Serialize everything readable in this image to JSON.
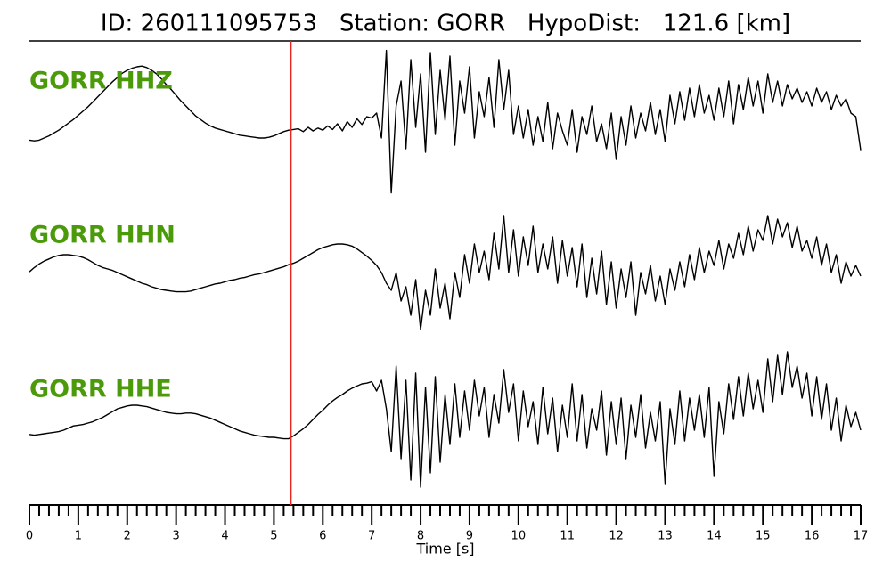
{
  "chart_data": {
    "type": "line",
    "title": "ID: 260111095753   Station: GORR   HypoDist:   121.6 [km]",
    "x_label": "Time [s]",
    "xlim": [
      0,
      17
    ],
    "ylim": [
      -1,
      1
    ],
    "xticks": [
      0,
      1,
      2,
      3,
      4,
      5,
      6,
      7,
      8,
      9,
      10,
      11,
      12,
      13,
      14,
      15,
      16,
      17
    ],
    "xminorticks": [
      0.2,
      0.4,
      0.6,
      0.8,
      1.2,
      1.4,
      1.6,
      1.8,
      2.2,
      2.4,
      2.6,
      2.8,
      3.2,
      3.4,
      3.6,
      3.8,
      4.2,
      4.4,
      4.6,
      4.8,
      5.2,
      5.4,
      5.6,
      5.8,
      6.2,
      6.4,
      6.6,
      6.8,
      7.2,
      7.4,
      7.6,
      7.8,
      8.2,
      8.4,
      8.6,
      8.8,
      9.2,
      9.4,
      9.6,
      9.8,
      10.2,
      10.4,
      10.6,
      10.8,
      11.2,
      11.4,
      11.6,
      11.8,
      12.2,
      12.4,
      12.6,
      12.8,
      13.2,
      13.4,
      13.6,
      13.8,
      14.2,
      14.4,
      14.6,
      14.8,
      15.2,
      15.4,
      15.6,
      15.8,
      16.2,
      16.4,
      16.6,
      16.8
    ],
    "pick_time": 5.35,
    "pick_color": "#e8261f",
    "label_color": "#4a9a0a",
    "x": [
      0,
      0.1,
      0.2,
      0.3,
      0.4,
      0.5,
      0.6,
      0.7,
      0.8,
      0.9,
      1,
      1.1,
      1.2,
      1.3,
      1.4,
      1.5,
      1.6,
      1.7,
      1.8,
      1.9,
      2,
      2.1,
      2.2,
      2.3,
      2.4,
      2.5,
      2.6,
      2.7,
      2.8,
      2.9,
      3,
      3.1,
      3.2,
      3.3,
      3.4,
      3.5,
      3.6,
      3.7,
      3.8,
      3.9,
      4,
      4.1,
      4.2,
      4.3,
      4.4,
      4.5,
      4.6,
      4.7,
      4.8,
      4.9,
      5,
      5.1,
      5.2,
      5.3,
      5.4,
      5.5,
      5.6,
      5.7,
      5.8,
      5.9,
      6,
      6.1,
      6.2,
      6.3,
      6.4,
      6.5,
      6.6,
      6.7,
      6.8,
      6.9,
      7,
      7.1,
      7.2,
      7.3,
      7.4,
      7.5,
      7.6,
      7.7,
      7.8,
      7.9,
      8,
      8.1,
      8.2,
      8.3,
      8.4,
      8.5,
      8.6,
      8.7,
      8.8,
      8.9,
      9,
      9.1,
      9.2,
      9.3,
      9.4,
      9.5,
      9.6,
      9.7,
      9.8,
      9.9,
      10,
      10.1,
      10.2,
      10.3,
      10.4,
      10.5,
      10.6,
      10.7,
      10.8,
      10.9,
      11,
      11.1,
      11.2,
      11.3,
      11.4,
      11.5,
      11.6,
      11.7,
      11.8,
      11.9,
      12,
      12.1,
      12.2,
      12.3,
      12.4,
      12.5,
      12.6,
      12.7,
      12.8,
      12.9,
      13,
      13.1,
      13.2,
      13.3,
      13.4,
      13.5,
      13.6,
      13.7,
      13.8,
      13.9,
      14,
      14.1,
      14.2,
      14.3,
      14.4,
      14.5,
      14.6,
      14.7,
      14.8,
      14.9,
      15,
      15.1,
      15.2,
      15.3,
      15.4,
      15.5,
      15.6,
      15.7,
      15.8,
      15.9,
      16,
      16.1,
      16.2,
      16.3,
      16.4,
      16.5,
      16.6,
      16.7,
      16.8,
      16.9,
      17
    ],
    "series": [
      {
        "name": "GORR HHZ",
        "color": "#000000",
        "values": [
          -0.28,
          -0.29,
          -0.28,
          -0.25,
          -0.22,
          -0.18,
          -0.14,
          -0.09,
          -0.04,
          0.01,
          0.07,
          0.13,
          0.19,
          0.26,
          0.33,
          0.4,
          0.47,
          0.54,
          0.6,
          0.66,
          0.7,
          0.73,
          0.75,
          0.76,
          0.74,
          0.7,
          0.65,
          0.58,
          0.5,
          0.43,
          0.35,
          0.27,
          0.2,
          0.13,
          0.06,
          0.01,
          -0.04,
          -0.08,
          -0.11,
          -0.13,
          -0.15,
          -0.17,
          -0.19,
          -0.21,
          -0.22,
          -0.23,
          -0.24,
          -0.25,
          -0.25,
          -0.24,
          -0.22,
          -0.19,
          -0.16,
          -0.14,
          -0.13,
          -0.12,
          -0.16,
          -0.1,
          -0.15,
          -0.11,
          -0.14,
          -0.08,
          -0.13,
          -0.05,
          -0.15,
          -0.02,
          -0.1,
          0.02,
          -0.06,
          0.05,
          0.03,
          0.1,
          -0.25,
          0.98,
          -1.02,
          0.2,
          0.55,
          -0.4,
          0.85,
          -0.1,
          0.65,
          -0.45,
          0.95,
          -0.2,
          0.7,
          0.0,
          0.9,
          -0.35,
          0.55,
          0.1,
          0.75,
          -0.25,
          0.4,
          0.05,
          0.6,
          -0.1,
          0.85,
          0.15,
          0.7,
          -0.2,
          0.2,
          -0.25,
          0.15,
          -0.35,
          0.05,
          -0.3,
          0.25,
          -0.4,
          0.1,
          -0.15,
          -0.35,
          0.15,
          -0.45,
          0.05,
          -0.2,
          0.2,
          -0.3,
          -0.05,
          -0.4,
          0.1,
          -0.55,
          0.05,
          -0.35,
          0.2,
          -0.25,
          0.1,
          -0.15,
          0.25,
          -0.2,
          0.15,
          -0.3,
          0.35,
          -0.05,
          0.4,
          0.0,
          0.45,
          0.05,
          0.5,
          0.1,
          0.35,
          0.0,
          0.45,
          0.05,
          0.55,
          -0.05,
          0.5,
          0.15,
          0.6,
          0.2,
          0.55,
          0.1,
          0.65,
          0.25,
          0.55,
          0.2,
          0.5,
          0.3,
          0.45,
          0.25,
          0.4,
          0.2,
          0.45,
          0.25,
          0.4,
          0.15,
          0.35,
          0.2,
          0.3,
          0.1,
          0.05,
          -0.42
        ]
      },
      {
        "name": "GORR HHN",
        "color": "#000000",
        "values": [
          0.06,
          0.12,
          0.17,
          0.21,
          0.24,
          0.27,
          0.29,
          0.3,
          0.3,
          0.29,
          0.28,
          0.26,
          0.23,
          0.19,
          0.15,
          0.12,
          0.1,
          0.08,
          0.05,
          0.02,
          -0.01,
          -0.04,
          -0.07,
          -0.1,
          -0.12,
          -0.15,
          -0.17,
          -0.19,
          -0.2,
          -0.21,
          -0.22,
          -0.22,
          -0.22,
          -0.21,
          -0.19,
          -0.17,
          -0.15,
          -0.13,
          -0.11,
          -0.1,
          -0.08,
          -0.06,
          -0.05,
          -0.03,
          -0.02,
          0.0,
          0.02,
          0.03,
          0.05,
          0.07,
          0.09,
          0.11,
          0.13,
          0.16,
          0.18,
          0.21,
          0.25,
          0.29,
          0.33,
          0.37,
          0.4,
          0.42,
          0.44,
          0.45,
          0.45,
          0.44,
          0.42,
          0.38,
          0.33,
          0.28,
          0.22,
          0.15,
          0.05,
          -0.1,
          -0.2,
          0.05,
          -0.35,
          -0.15,
          -0.55,
          -0.05,
          -0.75,
          -0.2,
          -0.55,
          0.1,
          -0.45,
          -0.1,
          -0.6,
          0.05,
          -0.3,
          0.3,
          -0.1,
          0.45,
          0.05,
          0.35,
          -0.05,
          0.6,
          0.1,
          0.85,
          0.05,
          0.65,
          0.0,
          0.55,
          0.15,
          0.7,
          0.05,
          0.45,
          0.1,
          0.55,
          -0.1,
          0.5,
          0.0,
          0.4,
          -0.15,
          0.45,
          -0.3,
          0.25,
          -0.25,
          0.35,
          -0.4,
          0.2,
          -0.45,
          0.1,
          -0.3,
          0.2,
          -0.55,
          0.05,
          -0.25,
          0.15,
          -0.35,
          0.0,
          -0.4,
          0.1,
          -0.2,
          0.2,
          -0.15,
          0.3,
          -0.05,
          0.4,
          0.05,
          0.35,
          0.15,
          0.5,
          0.1,
          0.45,
          0.25,
          0.6,
          0.3,
          0.7,
          0.35,
          0.65,
          0.5,
          0.85,
          0.45,
          0.8,
          0.55,
          0.75,
          0.4,
          0.7,
          0.35,
          0.5,
          0.25,
          0.55,
          0.15,
          0.45,
          0.05,
          0.3,
          -0.1,
          0.2,
          0.0,
          0.15,
          0.0
        ]
      },
      {
        "name": "GORR HHE",
        "color": "#000000",
        "values": [
          -0.16,
          -0.17,
          -0.16,
          -0.15,
          -0.14,
          -0.13,
          -0.12,
          -0.1,
          -0.07,
          -0.04,
          -0.03,
          -0.02,
          0.0,
          0.02,
          0.05,
          0.08,
          0.12,
          0.16,
          0.2,
          0.22,
          0.24,
          0.25,
          0.25,
          0.24,
          0.23,
          0.21,
          0.19,
          0.17,
          0.15,
          0.14,
          0.13,
          0.13,
          0.14,
          0.14,
          0.13,
          0.11,
          0.09,
          0.07,
          0.04,
          0.01,
          -0.02,
          -0.05,
          -0.08,
          -0.11,
          -0.13,
          -0.15,
          -0.17,
          -0.18,
          -0.19,
          -0.2,
          -0.2,
          -0.21,
          -0.22,
          -0.22,
          -0.18,
          -0.13,
          -0.08,
          -0.02,
          0.05,
          0.12,
          0.18,
          0.25,
          0.31,
          0.36,
          0.4,
          0.45,
          0.49,
          0.52,
          0.55,
          0.56,
          0.58,
          0.45,
          0.6,
          0.2,
          -0.4,
          0.8,
          -0.5,
          0.6,
          -0.8,
          0.7,
          -0.9,
          0.5,
          -0.7,
          0.65,
          -0.55,
          0.4,
          -0.3,
          0.55,
          -0.2,
          0.45,
          -0.1,
          0.6,
          0.1,
          0.5,
          -0.2,
          0.4,
          0.0,
          0.75,
          0.15,
          0.55,
          -0.25,
          0.45,
          -0.05,
          0.3,
          -0.3,
          0.5,
          -0.15,
          0.35,
          -0.4,
          0.25,
          -0.2,
          0.55,
          -0.25,
          0.4,
          -0.35,
          0.2,
          -0.1,
          0.45,
          -0.45,
          0.3,
          -0.3,
          0.35,
          -0.5,
          0.25,
          -0.2,
          0.4,
          -0.35,
          0.15,
          -0.25,
          0.3,
          -0.85,
          0.2,
          -0.3,
          0.45,
          -0.25,
          0.35,
          -0.1,
          0.4,
          -0.2,
          0.5,
          -0.75,
          0.3,
          -0.15,
          0.55,
          0.05,
          0.65,
          0.1,
          0.7,
          0.2,
          0.6,
          0.15,
          0.9,
          0.3,
          0.95,
          0.4,
          1.0,
          0.5,
          0.8,
          0.35,
          0.7,
          0.1,
          0.65,
          0.05,
          0.55,
          -0.1,
          0.35,
          -0.25,
          0.25,
          -0.05,
          0.15,
          -0.1
        ]
      }
    ]
  }
}
